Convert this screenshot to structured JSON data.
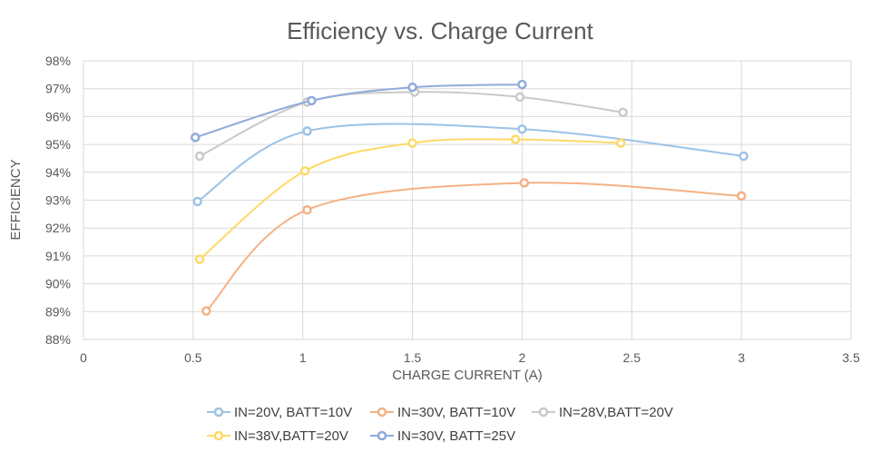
{
  "chart_data": {
    "type": "line",
    "title": "Efficiency vs. Charge Current",
    "xlabel": "CHARGE CURRENT (A)",
    "ylabel": "EFFICIENCY",
    "xlim": [
      0,
      3.5
    ],
    "ylim": [
      88,
      98
    ],
    "x_ticks": [
      0,
      0.5,
      1,
      1.5,
      2,
      2.5,
      3,
      3.5
    ],
    "x_tick_labels": [
      "0",
      "0.5",
      "1",
      "1.5",
      "2",
      "2.5",
      "3",
      "3.5"
    ],
    "y_ticks": [
      88,
      89,
      90,
      91,
      92,
      93,
      94,
      95,
      96,
      97,
      98
    ],
    "y_tick_labels": [
      "88%",
      "89%",
      "90%",
      "91%",
      "92%",
      "93%",
      "94%",
      "95%",
      "96%",
      "97%",
      "98%"
    ],
    "grid": true,
    "smooth": true,
    "legend_position": "bottom",
    "series": [
      {
        "name": "IN=20V, BATT=10V",
        "color": "#9dc3e6",
        "points": [
          [
            0.52,
            92.95
          ],
          [
            1.02,
            95.48
          ],
          [
            2.0,
            95.55
          ],
          [
            3.01,
            94.58
          ]
        ]
      },
      {
        "name": "IN=30V, BATT=10V",
        "color": "#f4b183",
        "points": [
          [
            0.56,
            89.02
          ],
          [
            1.02,
            92.65
          ],
          [
            2.01,
            93.62
          ],
          [
            3.0,
            93.15
          ]
        ]
      },
      {
        "name": "IN=28V,BATT=20V",
        "color": "#c9c9c9",
        "points": [
          [
            0.53,
            94.58
          ],
          [
            1.02,
            96.52
          ],
          [
            1.51,
            96.88
          ],
          [
            1.99,
            96.7
          ],
          [
            2.46,
            96.15
          ]
        ]
      },
      {
        "name": "IN=38V,BATT=20V",
        "color": "#ffd966",
        "points": [
          [
            0.53,
            90.88
          ],
          [
            1.01,
            94.05
          ],
          [
            1.5,
            95.05
          ],
          [
            1.97,
            95.18
          ],
          [
            2.45,
            95.05
          ]
        ]
      },
      {
        "name": "IN=30V, BATT=25V",
        "color": "#8faadc",
        "points": [
          [
            0.51,
            95.25
          ],
          [
            1.04,
            96.57
          ],
          [
            1.5,
            97.05
          ],
          [
            2.0,
            97.15
          ]
        ]
      }
    ]
  }
}
